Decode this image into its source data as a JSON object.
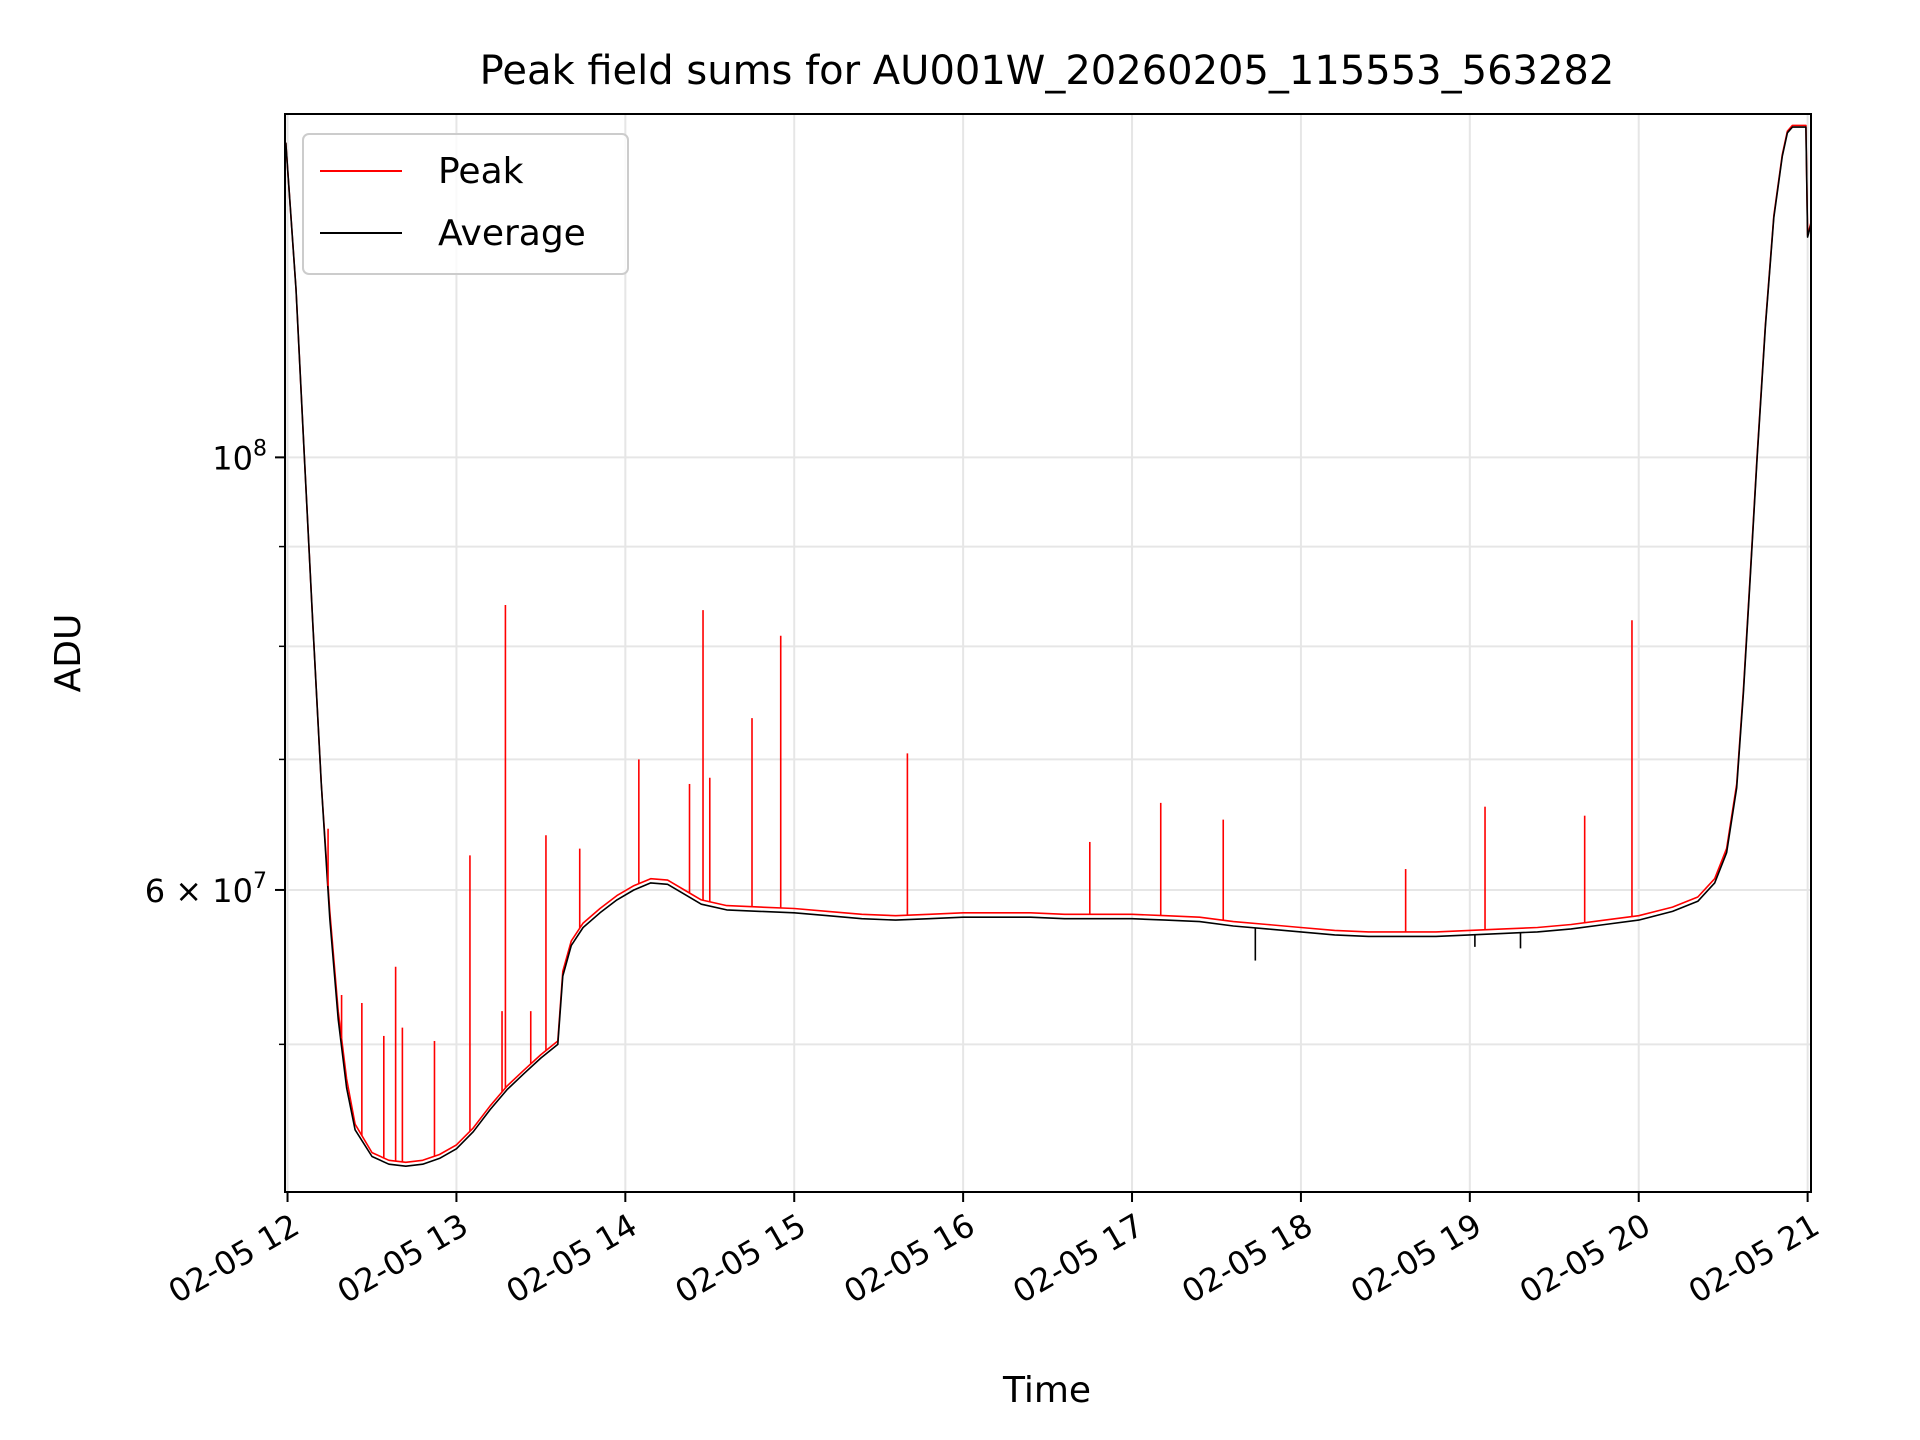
{
  "chart_data": {
    "type": "line",
    "title": "Peak field sums for AU001W_20260205_115553_563282",
    "xlabel": "Time",
    "ylabel": "ADU",
    "yscale": "log",
    "ylim": [
      42000000,
      150000000
    ],
    "xlim": [
      11.985,
      21.02
    ],
    "grid": true,
    "legend_location": "upper left",
    "x_ticks": [
      {
        "value": 12,
        "label": "02-05 12"
      },
      {
        "value": 13,
        "label": "02-05 13"
      },
      {
        "value": 14,
        "label": "02-05 14"
      },
      {
        "value": 15,
        "label": "02-05 15"
      },
      {
        "value": 16,
        "label": "02-05 16"
      },
      {
        "value": 17,
        "label": "02-05 17"
      },
      {
        "value": 18,
        "label": "02-05 18"
      },
      {
        "value": 19,
        "label": "02-05 19"
      },
      {
        "value": 20,
        "label": "02-05 20"
      },
      {
        "value": 21,
        "label": "02-05 21"
      }
    ],
    "y_ticks_major": [
      {
        "value": 100000000,
        "label_base": "10",
        "label_exp": "8"
      },
      {
        "value": 60000000,
        "label_base": "6 × 10",
        "label_exp": "7"
      }
    ],
    "y_ticks_minor": [
      50000000,
      70000000,
      80000000,
      90000000
    ],
    "series": [
      {
        "name": "Peak",
        "color": "#ff0000",
        "x": [
          11.99,
          12.05,
          12.1,
          12.15,
          12.2,
          12.25,
          12.3,
          12.35,
          12.4,
          12.5,
          12.6,
          12.7,
          12.8,
          12.9,
          13.0,
          13.1,
          13.2,
          13.3,
          13.4,
          13.5,
          13.6,
          13.63,
          13.68,
          13.75,
          13.85,
          13.95,
          14.05,
          14.15,
          14.25,
          14.35,
          14.45,
          14.6,
          14.8,
          15.0,
          15.2,
          15.4,
          15.6,
          15.8,
          16.0,
          16.2,
          16.4,
          16.6,
          16.8,
          17.0,
          17.2,
          17.4,
          17.6,
          17.8,
          18.0,
          18.2,
          18.4,
          18.6,
          18.8,
          19.0,
          19.2,
          19.4,
          19.6,
          19.8,
          20.0,
          20.2,
          20.35,
          20.45,
          20.52,
          20.58,
          20.62,
          20.66,
          20.7,
          20.75,
          20.8,
          20.85,
          20.88,
          20.91,
          20.94,
          20.97,
          20.99,
          21.0,
          21.02
        ],
        "values": [
          145000000,
          122000000,
          100000000,
          82000000,
          68000000,
          58500000,
          52000000,
          48000000,
          45500000,
          44000000,
          43600000,
          43500000,
          43600000,
          43900000,
          44400000,
          45300000,
          46500000,
          47600000,
          48500000,
          49400000,
          50200000,
          54500000,
          56500000,
          57700000,
          58700000,
          59600000,
          60300000,
          60800000,
          60700000,
          60000000,
          59300000,
          58900000,
          58800000,
          58700000,
          58500000,
          58300000,
          58200000,
          58300000,
          58400000,
          58400000,
          58400000,
          58300000,
          58300000,
          58300000,
          58200000,
          58100000,
          57800000,
          57600000,
          57400000,
          57200000,
          57100000,
          57100000,
          57100000,
          57200000,
          57300000,
          57400000,
          57600000,
          57900000,
          58200000,
          58800000,
          59500000,
          60800000,
          63000000,
          68000000,
          76000000,
          87000000,
          100000000,
          117000000,
          133000000,
          143000000,
          147000000,
          148000000,
          148000000,
          148000000,
          148000000,
          130000000,
          132000000
        ]
      },
      {
        "name": "Average",
        "color": "#000000",
        "x": [
          11.99,
          12.05,
          12.1,
          12.15,
          12.2,
          12.25,
          12.3,
          12.35,
          12.4,
          12.5,
          12.6,
          12.7,
          12.8,
          12.9,
          13.0,
          13.1,
          13.2,
          13.3,
          13.4,
          13.5,
          13.6,
          13.63,
          13.68,
          13.75,
          13.85,
          13.95,
          14.05,
          14.15,
          14.25,
          14.35,
          14.45,
          14.6,
          14.8,
          15.0,
          15.2,
          15.4,
          15.6,
          15.8,
          16.0,
          16.2,
          16.4,
          16.6,
          16.8,
          17.0,
          17.2,
          17.4,
          17.6,
          17.8,
          18.0,
          18.2,
          18.4,
          18.6,
          18.8,
          19.0,
          19.2,
          19.4,
          19.6,
          19.8,
          20.0,
          20.2,
          20.35,
          20.45,
          20.52,
          20.58,
          20.62,
          20.66,
          20.7,
          20.75,
          20.8,
          20.85,
          20.88,
          20.91,
          20.94,
          20.97,
          20.99,
          21.0,
          21.02
        ],
        "values": [
          145000000,
          122000000,
          100000000,
          82000000,
          68000000,
          58000000,
          51500000,
          47500000,
          45200000,
          43800000,
          43400000,
          43300000,
          43400000,
          43700000,
          44200000,
          45100000,
          46300000,
          47400000,
          48300000,
          49200000,
          50000000,
          54200000,
          56200000,
          57400000,
          58400000,
          59300000,
          60000000,
          60500000,
          60400000,
          59700000,
          59000000,
          58600000,
          58500000,
          58400000,
          58200000,
          58000000,
          57900000,
          58000000,
          58100000,
          58100000,
          58100000,
          58000000,
          58000000,
          58000000,
          57900000,
          57800000,
          57500000,
          57300000,
          57100000,
          56900000,
          56800000,
          56800000,
          56800000,
          56900000,
          57000000,
          57100000,
          57300000,
          57600000,
          57900000,
          58500000,
          59200000,
          60500000,
          62700000,
          67700000,
          75700000,
          86700000,
          99700000,
          116700000,
          132700000,
          142700000,
          146700000,
          147700000,
          147700000,
          147700000,
          147700000,
          129700000,
          131700000
        ]
      }
    ],
    "spikes": {
      "Peak": [
        {
          "x": 12.24,
          "y": 64500000
        },
        {
          "x": 12.32,
          "y": 53000000
        },
        {
          "x": 12.44,
          "y": 52500000
        },
        {
          "x": 12.57,
          "y": 50500000
        },
        {
          "x": 12.64,
          "y": 54800000
        },
        {
          "x": 12.68,
          "y": 51000000
        },
        {
          "x": 12.87,
          "y": 50200000
        },
        {
          "x": 13.08,
          "y": 62500000
        },
        {
          "x": 13.27,
          "y": 52000000
        },
        {
          "x": 13.29,
          "y": 84000000
        },
        {
          "x": 13.44,
          "y": 52000000
        },
        {
          "x": 13.53,
          "y": 64000000
        },
        {
          "x": 13.73,
          "y": 63000000
        },
        {
          "x": 14.08,
          "y": 70000000
        },
        {
          "x": 14.38,
          "y": 68000000
        },
        {
          "x": 14.46,
          "y": 83500000
        },
        {
          "x": 14.5,
          "y": 68500000
        },
        {
          "x": 14.75,
          "y": 73500000
        },
        {
          "x": 14.92,
          "y": 81000000
        },
        {
          "x": 15.67,
          "y": 70500000
        },
        {
          "x": 16.75,
          "y": 63500000
        },
        {
          "x": 17.17,
          "y": 66500000
        },
        {
          "x": 17.54,
          "y": 65200000
        },
        {
          "x": 18.62,
          "y": 61500000
        },
        {
          "x": 19.09,
          "y": 66200000
        },
        {
          "x": 19.68,
          "y": 65500000
        },
        {
          "x": 19.96,
          "y": 82500000
        }
      ],
      "Average": [
        {
          "x": 17.73,
          "y": 55200000
        },
        {
          "x": 19.03,
          "y": 56100000
        },
        {
          "x": 19.3,
          "y": 56000000
        }
      ]
    }
  }
}
